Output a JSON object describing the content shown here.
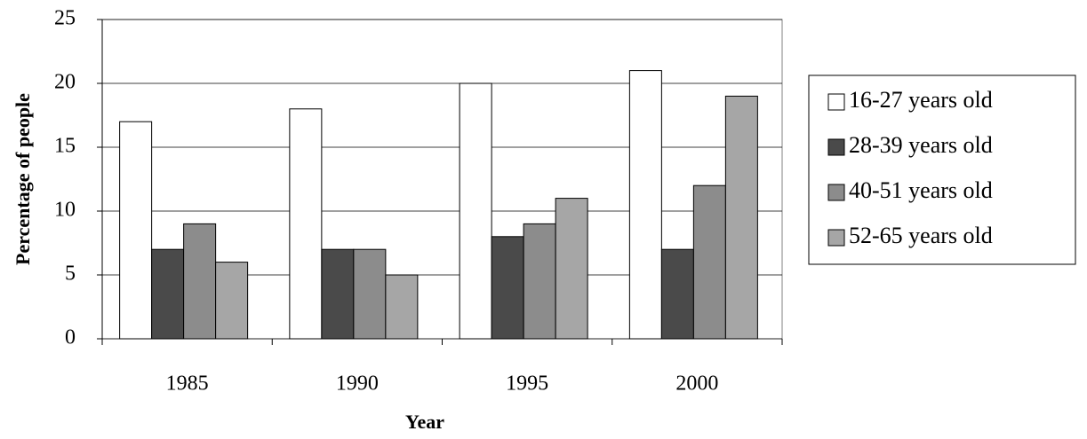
{
  "chart_data": {
    "type": "bar",
    "x_label": "Year",
    "y_label": "Percentage of people",
    "categories": [
      "1985",
      "1990",
      "1995",
      "2000"
    ],
    "series": [
      {
        "name": "16-27 years old",
        "color": "#ffffff",
        "values": [
          17,
          18,
          20,
          21
        ]
      },
      {
        "name": "28-39 years old",
        "color": "#4a4a4a",
        "values": [
          7,
          7,
          8,
          7
        ]
      },
      {
        "name": "40-51 years old",
        "color": "#8c8c8c",
        "values": [
          9,
          7,
          9,
          12
        ]
      },
      {
        "name": "52-65 years old",
        "color": "#a6a6a6",
        "values": [
          6,
          5,
          11,
          19
        ]
      }
    ],
    "ylim": [
      0,
      25
    ],
    "yticks": [
      0,
      5,
      10,
      15,
      20,
      25
    ],
    "grid": true,
    "legend": "right"
  }
}
